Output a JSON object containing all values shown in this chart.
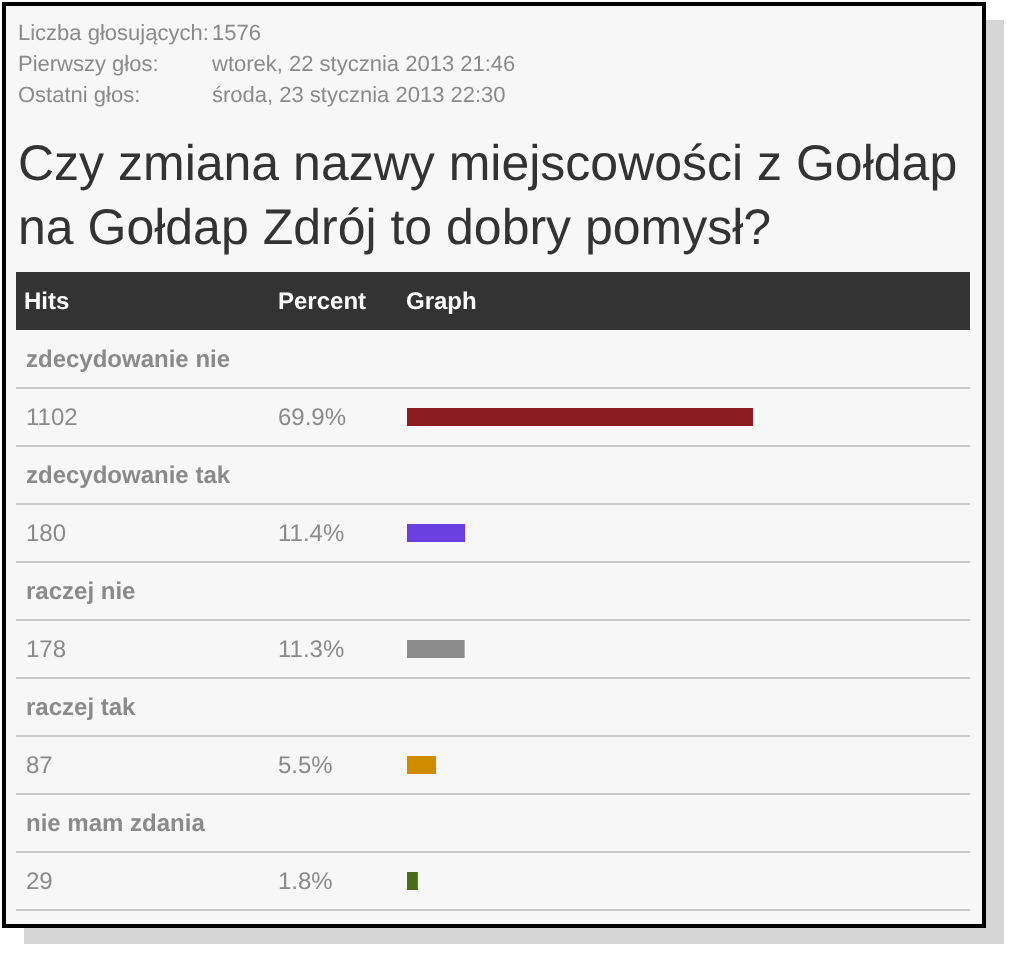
{
  "chart_data": {
    "type": "bar",
    "orientation": "horizontal",
    "title": "Czy zmiana nazwy miejscowości z Gołdap\nna Gołdap Zdrój to dobry  pomysł?",
    "categories": [
      "zdecydowanie nie",
      "zdecydowanie tak",
      "raczej nie",
      "raczej tak",
      "nie mam zdania"
    ],
    "values": [
      69.9,
      11.4,
      11.3,
      5.5,
      1.8
    ],
    "colors": [
      "#8b1c22",
      "#6a40e0",
      "#8c8c8c",
      "#d08c00",
      "#4a6b1e"
    ],
    "value_labels": [
      "69.9%",
      "11.4%",
      "11.3%",
      "5.5%",
      "1.8%"
    ],
    "annotations": [
      "Liczba głosujących:",
      "1576",
      "Pierwszy głos:",
      "wtorek, 22 stycznia 2013 21:46",
      "Ostatni głos:",
      "środa, 23 stycznia 2013 22:30",
      "Hits",
      "Percent",
      "Graph",
      "1102",
      "180",
      "178",
      "87",
      "29"
    ]
  }
}
